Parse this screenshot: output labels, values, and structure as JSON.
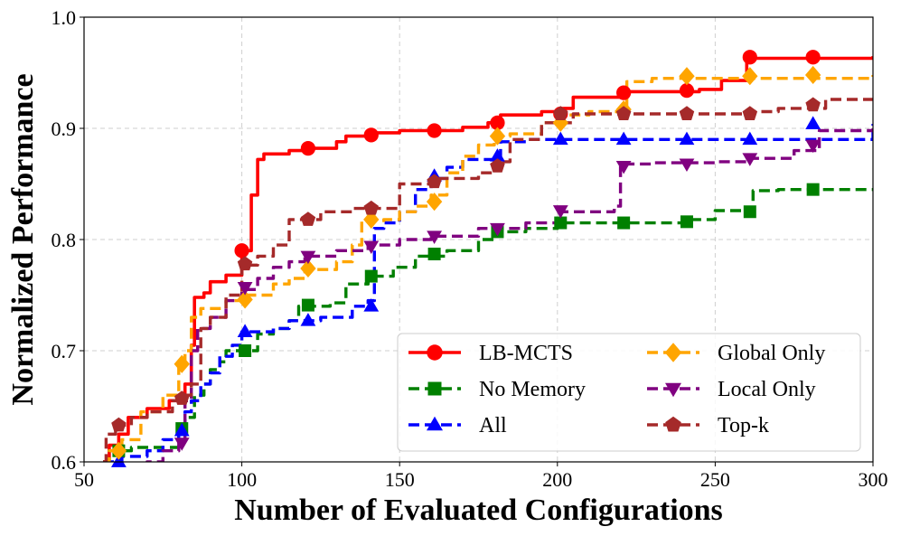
{
  "chart_data": {
    "type": "line",
    "xlabel": "Number of Evaluated Configurations",
    "ylabel": "Normalized Performance",
    "xlim": [
      50,
      300
    ],
    "ylim": [
      0.6,
      1.0
    ],
    "xticks": [
      50,
      100,
      150,
      200,
      250,
      300
    ],
    "yticks": [
      0.6,
      0.7,
      0.8,
      0.9,
      1.0
    ],
    "xtick_labels": [
      "50",
      "100",
      "150",
      "200",
      "250",
      "300"
    ],
    "ytick_labels": [
      "0.6",
      "0.7",
      "0.8",
      "0.9",
      "1.0"
    ],
    "grid": true,
    "legend_position": "lower-right",
    "legend_columns": 2,
    "series": [
      {
        "name": "LB-MCTS",
        "color": "#ff0000",
        "dash": "solid",
        "marker": "circle",
        "steps": [
          [
            56,
            0.6
          ],
          [
            58,
            0.615
          ],
          [
            61,
            0.625
          ],
          [
            64,
            0.64
          ],
          [
            70,
            0.648
          ],
          [
            77,
            0.655
          ],
          [
            82,
            0.67
          ],
          [
            84,
            0.705
          ],
          [
            85,
            0.748
          ],
          [
            88,
            0.752
          ],
          [
            90,
            0.762
          ],
          [
            95,
            0.768
          ],
          [
            100,
            0.79
          ],
          [
            103,
            0.84
          ],
          [
            105,
            0.872
          ],
          [
            107,
            0.877
          ],
          [
            115,
            0.88
          ],
          [
            121,
            0.882
          ],
          [
            130,
            0.888
          ],
          [
            133,
            0.893
          ],
          [
            141,
            0.896
          ],
          [
            150,
            0.898
          ],
          [
            170,
            0.901
          ],
          [
            178,
            0.905
          ],
          [
            182,
            0.912
          ],
          [
            195,
            0.915
          ],
          [
            202,
            0.918
          ],
          [
            205,
            0.928
          ],
          [
            220,
            0.933
          ],
          [
            245,
            0.935
          ],
          [
            252,
            0.943
          ],
          [
            260,
            0.963
          ],
          [
            300,
            0.965
          ]
        ],
        "markers": [
          [
            100,
            0.79
          ],
          [
            121,
            0.882
          ],
          [
            141,
            0.894
          ],
          [
            161,
            0.898
          ],
          [
            181,
            0.905
          ],
          [
            201,
            0.913
          ],
          [
            221,
            0.932
          ],
          [
            241,
            0.934
          ],
          [
            261,
            0.964
          ],
          [
            281,
            0.964
          ]
        ]
      },
      {
        "name": "No Memory",
        "color": "#008000",
        "dash": "dashed",
        "marker": "square",
        "steps": [
          [
            56,
            0.6
          ],
          [
            58,
            0.61
          ],
          [
            65,
            0.613
          ],
          [
            80,
            0.628
          ],
          [
            82,
            0.64
          ],
          [
            85,
            0.66
          ],
          [
            88,
            0.67
          ],
          [
            90,
            0.683
          ],
          [
            93,
            0.69
          ],
          [
            95,
            0.7
          ],
          [
            105,
            0.715
          ],
          [
            110,
            0.72
          ],
          [
            115,
            0.727
          ],
          [
            118,
            0.74
          ],
          [
            128,
            0.743
          ],
          [
            133,
            0.76
          ],
          [
            140,
            0.767
          ],
          [
            148,
            0.775
          ],
          [
            155,
            0.785
          ],
          [
            165,
            0.79
          ],
          [
            175,
            0.8
          ],
          [
            180,
            0.807
          ],
          [
            190,
            0.81
          ],
          [
            200,
            0.815
          ],
          [
            240,
            0.818
          ],
          [
            250,
            0.826
          ],
          [
            262,
            0.844
          ],
          [
            270,
            0.845
          ],
          [
            300,
            0.845
          ]
        ],
        "markers": [
          [
            61,
            0.61
          ],
          [
            81,
            0.63
          ],
          [
            101,
            0.7
          ],
          [
            121,
            0.741
          ],
          [
            141,
            0.767
          ],
          [
            161,
            0.787
          ],
          [
            181,
            0.807
          ],
          [
            201,
            0.815
          ],
          [
            221,
            0.815
          ],
          [
            241,
            0.816
          ],
          [
            261,
            0.825
          ],
          [
            281,
            0.845
          ]
        ]
      },
      {
        "name": "All",
        "color": "#0000ff",
        "dash": "dashed",
        "marker": "triangle-up",
        "steps": [
          [
            56,
            0.6
          ],
          [
            62,
            0.605
          ],
          [
            70,
            0.61
          ],
          [
            75,
            0.62
          ],
          [
            80,
            0.625
          ],
          [
            82,
            0.645
          ],
          [
            84,
            0.655
          ],
          [
            87,
            0.67
          ],
          [
            90,
            0.68
          ],
          [
            93,
            0.695
          ],
          [
            97,
            0.705
          ],
          [
            100,
            0.717
          ],
          [
            110,
            0.72
          ],
          [
            115,
            0.727
          ],
          [
            125,
            0.73
          ],
          [
            135,
            0.74
          ],
          [
            140,
            0.745
          ],
          [
            142,
            0.81
          ],
          [
            145,
            0.815
          ],
          [
            150,
            0.825
          ],
          [
            155,
            0.845
          ],
          [
            160,
            0.855
          ],
          [
            165,
            0.865
          ],
          [
            170,
            0.872
          ],
          [
            180,
            0.875
          ],
          [
            182,
            0.888
          ],
          [
            190,
            0.89
          ],
          [
            300,
            0.904
          ]
        ],
        "markers": [
          [
            61,
            0.6
          ],
          [
            81,
            0.628
          ],
          [
            101,
            0.717
          ],
          [
            121,
            0.727
          ],
          [
            141,
            0.74
          ],
          [
            161,
            0.857
          ],
          [
            181,
            0.875
          ],
          [
            201,
            0.89
          ],
          [
            221,
            0.89
          ],
          [
            241,
            0.89
          ],
          [
            261,
            0.89
          ],
          [
            281,
            0.904
          ]
        ]
      },
      {
        "name": "Global Only",
        "color": "#ffa500",
        "dash": "dashed",
        "marker": "diamond",
        "steps": [
          [
            56,
            0.6
          ],
          [
            58,
            0.61
          ],
          [
            62,
            0.62
          ],
          [
            68,
            0.645
          ],
          [
            75,
            0.66
          ],
          [
            80,
            0.688
          ],
          [
            82,
            0.7
          ],
          [
            84,
            0.73
          ],
          [
            87,
            0.738
          ],
          [
            95,
            0.745
          ],
          [
            100,
            0.75
          ],
          [
            110,
            0.76
          ],
          [
            115,
            0.765
          ],
          [
            120,
            0.773
          ],
          [
            130,
            0.78
          ],
          [
            135,
            0.795
          ],
          [
            138,
            0.817
          ],
          [
            145,
            0.818
          ],
          [
            150,
            0.825
          ],
          [
            155,
            0.83
          ],
          [
            160,
            0.84
          ],
          [
            165,
            0.86
          ],
          [
            170,
            0.875
          ],
          [
            175,
            0.885
          ],
          [
            180,
            0.893
          ],
          [
            185,
            0.895
          ],
          [
            195,
            0.905
          ],
          [
            202,
            0.912
          ],
          [
            210,
            0.915
          ],
          [
            222,
            0.942
          ],
          [
            230,
            0.945
          ],
          [
            300,
            0.948
          ]
        ],
        "markers": [
          [
            61,
            0.61
          ],
          [
            81,
            0.688
          ],
          [
            101,
            0.746
          ],
          [
            121,
            0.774
          ],
          [
            141,
            0.818
          ],
          [
            161,
            0.834
          ],
          [
            181,
            0.893
          ],
          [
            201,
            0.905
          ],
          [
            221,
            0.917
          ],
          [
            241,
            0.947
          ],
          [
            261,
            0.947
          ],
          [
            281,
            0.948
          ]
        ]
      },
      {
        "name": "Local Only",
        "color": "#800080",
        "dash": "dashed",
        "marker": "triangle-down",
        "steps": [
          [
            56,
            0.59
          ],
          [
            70,
            0.6
          ],
          [
            75,
            0.61
          ],
          [
            80,
            0.62
          ],
          [
            82,
            0.655
          ],
          [
            84,
            0.7
          ],
          [
            86,
            0.72
          ],
          [
            90,
            0.73
          ],
          [
            95,
            0.745
          ],
          [
            100,
            0.755
          ],
          [
            105,
            0.765
          ],
          [
            110,
            0.775
          ],
          [
            115,
            0.78
          ],
          [
            120,
            0.785
          ],
          [
            130,
            0.79
          ],
          [
            140,
            0.795
          ],
          [
            150,
            0.8
          ],
          [
            160,
            0.803
          ],
          [
            175,
            0.81
          ],
          [
            190,
            0.815
          ],
          [
            200,
            0.825
          ],
          [
            218,
            0.83
          ],
          [
            220,
            0.868
          ],
          [
            230,
            0.869
          ],
          [
            250,
            0.87
          ],
          [
            260,
            0.873
          ],
          [
            275,
            0.88
          ],
          [
            283,
            0.898
          ],
          [
            300,
            0.9
          ]
        ],
        "markers": [
          [
            81,
            0.617
          ],
          [
            101,
            0.757
          ],
          [
            121,
            0.785
          ],
          [
            141,
            0.794
          ],
          [
            161,
            0.803
          ],
          [
            181,
            0.81
          ],
          [
            201,
            0.826
          ],
          [
            221,
            0.866
          ],
          [
            241,
            0.868
          ],
          [
            261,
            0.873
          ],
          [
            281,
            0.885
          ]
        ]
      },
      {
        "name": "Top-k",
        "color": "#a52a2a",
        "dash": "dashed",
        "marker": "pentagon",
        "steps": [
          [
            56,
            0.6
          ],
          [
            57,
            0.625
          ],
          [
            60,
            0.633
          ],
          [
            65,
            0.64
          ],
          [
            70,
            0.645
          ],
          [
            78,
            0.655
          ],
          [
            80,
            0.66
          ],
          [
            84,
            0.67
          ],
          [
            87,
            0.72
          ],
          [
            90,
            0.73
          ],
          [
            95,
            0.75
          ],
          [
            100,
            0.777
          ],
          [
            105,
            0.785
          ],
          [
            110,
            0.795
          ],
          [
            115,
            0.818
          ],
          [
            125,
            0.825
          ],
          [
            135,
            0.828
          ],
          [
            150,
            0.85
          ],
          [
            160,
            0.855
          ],
          [
            175,
            0.86
          ],
          [
            180,
            0.87
          ],
          [
            185,
            0.89
          ],
          [
            195,
            0.905
          ],
          [
            205,
            0.913
          ],
          [
            260,
            0.915
          ],
          [
            270,
            0.918
          ],
          [
            285,
            0.926
          ],
          [
            300,
            0.927
          ]
        ],
        "markers": [
          [
            61,
            0.633
          ],
          [
            81,
            0.657
          ],
          [
            101,
            0.778
          ],
          [
            121,
            0.818
          ],
          [
            141,
            0.828
          ],
          [
            161,
            0.852
          ],
          [
            181,
            0.866
          ],
          [
            201,
            0.913
          ],
          [
            221,
            0.913
          ],
          [
            241,
            0.913
          ],
          [
            261,
            0.913
          ],
          [
            281,
            0.921
          ]
        ]
      }
    ]
  }
}
